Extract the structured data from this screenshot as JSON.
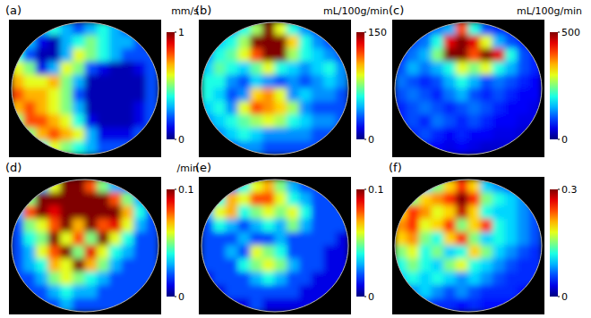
{
  "chart_data": [
    {
      "type": "heatmap",
      "title": "(a)",
      "colorbar_label": "mm/s",
      "colorbar_range": [
        0,
        1
      ],
      "colorbar_ticks": [
        0,
        1
      ],
      "cells": [
        [
          null,
          null,
          0.3,
          0.4,
          0.3,
          0.2,
          0.3,
          0.4,
          0.3,
          0.2,
          null,
          null
        ],
        [
          null,
          0.3,
          0.1,
          0.05,
          0.3,
          0.4,
          0.5,
          0.4,
          0.3,
          0.3,
          0.2,
          null
        ],
        [
          0.4,
          0.2,
          0.05,
          0.05,
          0.3,
          0.6,
          0.5,
          0.4,
          0.3,
          0.2,
          0.2,
          0.2
        ],
        [
          0.6,
          0.5,
          0.1,
          0.3,
          0.6,
          0.5,
          0.2,
          0.1,
          0.05,
          0.05,
          0.1,
          0.2
        ],
        [
          0.7,
          0.6,
          0.6,
          0.7,
          0.5,
          0.3,
          0.05,
          0.05,
          0.05,
          0.05,
          0.05,
          0.2
        ],
        [
          0.8,
          0.7,
          0.7,
          0.6,
          0.5,
          0.2,
          0.05,
          0.05,
          0.05,
          0.05,
          0.05,
          0.2
        ],
        [
          0.7,
          0.8,
          0.7,
          0.6,
          0.5,
          0.3,
          0.05,
          0.05,
          0.05,
          0.05,
          0.1,
          0.2
        ],
        [
          0.5,
          0.8,
          0.8,
          0.7,
          0.6,
          0.4,
          0.1,
          0.05,
          0.05,
          0.05,
          0.1,
          0.2
        ],
        [
          null,
          0.5,
          0.7,
          0.8,
          0.7,
          0.6,
          0.3,
          0.1,
          0.1,
          0.1,
          0.2,
          null
        ],
        [
          null,
          null,
          0.4,
          0.6,
          0.5,
          0.4,
          0.3,
          0.2,
          0.2,
          0.2,
          null,
          null
        ]
      ]
    },
    {
      "type": "heatmap",
      "title": "(b)",
      "colorbar_label": "mL/100g/min",
      "colorbar_range": [
        0,
        150
      ],
      "colorbar_ticks": [
        0,
        150
      ],
      "cells": [
        [
          null,
          null,
          40,
          60,
          80,
          150,
          90,
          60,
          40,
          30,
          null,
          null
        ],
        [
          null,
          50,
          60,
          80,
          150,
          150,
          150,
          100,
          60,
          40,
          30,
          null
        ],
        [
          40,
          60,
          70,
          90,
          120,
          150,
          150,
          80,
          60,
          50,
          40,
          30
        ],
        [
          50,
          70,
          60,
          50,
          70,
          90,
          60,
          50,
          40,
          50,
          60,
          40
        ],
        [
          60,
          60,
          40,
          30,
          50,
          40,
          30,
          40,
          30,
          40,
          50,
          40
        ],
        [
          60,
          50,
          30,
          40,
          100,
          110,
          90,
          40,
          50,
          40,
          40,
          30
        ],
        [
          50,
          60,
          40,
          90,
          120,
          110,
          100,
          80,
          40,
          30,
          30,
          30
        ],
        [
          40,
          50,
          60,
          70,
          80,
          90,
          80,
          60,
          50,
          40,
          40,
          30
        ],
        [
          null,
          40,
          50,
          60,
          50,
          40,
          40,
          40,
          40,
          30,
          30,
          null
        ],
        [
          null,
          null,
          30,
          40,
          40,
          30,
          30,
          30,
          30,
          30,
          null,
          null
        ]
      ]
    },
    {
      "type": "heatmap",
      "title": "(c)",
      "colorbar_label": "mL/100g/min",
      "colorbar_range": [
        0,
        500
      ],
      "colorbar_ticks": [
        0,
        500
      ],
      "cells": [
        [
          null,
          null,
          80,
          120,
          150,
          400,
          200,
          100,
          80,
          60,
          null,
          null
        ],
        [
          null,
          100,
          120,
          200,
          450,
          500,
          450,
          300,
          150,
          100,
          80,
          null
        ],
        [
          80,
          120,
          150,
          250,
          500,
          500,
          400,
          500,
          450,
          200,
          100,
          80
        ],
        [
          100,
          150,
          120,
          150,
          200,
          300,
          250,
          300,
          200,
          150,
          100,
          80
        ],
        [
          120,
          100,
          80,
          100,
          150,
          200,
          150,
          100,
          120,
          100,
          80,
          60
        ],
        [
          100,
          120,
          100,
          80,
          120,
          150,
          100,
          80,
          100,
          80,
          60,
          60
        ],
        [
          80,
          100,
          120,
          100,
          80,
          100,
          120,
          100,
          80,
          60,
          60,
          50
        ],
        [
          80,
          100,
          80,
          120,
          100,
          80,
          100,
          80,
          60,
          60,
          50,
          50
        ],
        [
          null,
          80,
          100,
          80,
          60,
          80,
          60,
          60,
          50,
          50,
          40,
          null
        ],
        [
          null,
          null,
          60,
          60,
          50,
          60,
          50,
          40,
          40,
          40,
          null,
          null
        ]
      ]
    },
    {
      "type": "heatmap",
      "title": "(d)",
      "colorbar_label": "/min",
      "colorbar_range": [
        0,
        0.1
      ],
      "colorbar_ticks": [
        0,
        0.1
      ],
      "cells": [
        [
          null,
          null,
          0.03,
          0.06,
          0.1,
          0.1,
          0.08,
          0.05,
          0.03,
          0.02,
          null,
          null
        ],
        [
          null,
          0.05,
          0.1,
          0.1,
          0.1,
          0.1,
          0.1,
          0.1,
          0.08,
          0.05,
          0.03,
          null
        ],
        [
          0.03,
          0.08,
          0.1,
          0.09,
          0.1,
          0.1,
          0.1,
          0.1,
          0.1,
          0.07,
          0.04,
          0.02
        ],
        [
          0.02,
          0.05,
          0.06,
          0.08,
          0.1,
          0.07,
          0.1,
          0.08,
          0.09,
          0.06,
          0.03,
          0.02
        ],
        [
          0.02,
          0.04,
          0.05,
          0.1,
          0.06,
          0.08,
          0.05,
          0.1,
          0.06,
          0.04,
          0.02,
          0.02
        ],
        [
          0.02,
          0.03,
          0.06,
          0.08,
          0.1,
          0.05,
          0.09,
          0.06,
          0.04,
          0.03,
          0.02,
          0.02
        ],
        [
          0.02,
          0.03,
          0.04,
          0.07,
          0.06,
          0.1,
          0.07,
          0.05,
          0.03,
          0.02,
          0.02,
          0.02
        ],
        [
          0.02,
          0.02,
          0.03,
          0.05,
          0.06,
          0.05,
          0.04,
          0.03,
          0.02,
          0.02,
          0.02,
          0.02
        ],
        [
          null,
          0.02,
          0.02,
          0.03,
          0.04,
          0.03,
          0.03,
          0.02,
          0.02,
          0.02,
          0.02,
          null
        ],
        [
          null,
          null,
          0.02,
          0.02,
          0.03,
          0.02,
          0.02,
          0.02,
          0.02,
          0.02,
          null,
          null
        ]
      ]
    },
    {
      "type": "heatmap",
      "title": "(e)",
      "colorbar_range": [
        0,
        0.1
      ],
      "colorbar_ticks": [
        0,
        0.1
      ],
      "cells": [
        [
          null,
          null,
          0.02,
          0.04,
          0.06,
          0.07,
          0.05,
          0.03,
          0.02,
          0.02,
          null,
          null
        ],
        [
          null,
          0.04,
          0.07,
          0.06,
          0.08,
          0.08,
          0.06,
          0.04,
          0.03,
          0.02,
          0.02,
          null
        ],
        [
          0.03,
          0.06,
          0.07,
          0.04,
          0.05,
          0.06,
          0.05,
          0.06,
          0.04,
          0.02,
          0.02,
          0.02
        ],
        [
          0.02,
          0.04,
          0.03,
          0.02,
          0.03,
          0.04,
          0.03,
          0.05,
          0.03,
          0.02,
          0.02,
          0.02
        ],
        [
          0.02,
          0.02,
          0.02,
          0.03,
          0.02,
          0.02,
          0.03,
          0.02,
          0.02,
          0.02,
          0.02,
          0.01
        ],
        [
          0.02,
          0.02,
          0.03,
          0.02,
          0.06,
          0.05,
          0.04,
          0.02,
          0.02,
          0.02,
          0.01,
          0.01
        ],
        [
          0.02,
          0.02,
          0.02,
          0.04,
          0.05,
          0.06,
          0.05,
          0.03,
          0.02,
          0.02,
          0.01,
          0.01
        ],
        [
          0.01,
          0.02,
          0.02,
          0.02,
          0.03,
          0.04,
          0.03,
          0.02,
          0.02,
          0.01,
          0.01,
          0.01
        ],
        [
          null,
          0.01,
          0.02,
          0.02,
          0.02,
          0.02,
          0.02,
          0.02,
          0.01,
          0.01,
          0.01,
          null
        ],
        [
          null,
          null,
          0.01,
          0.01,
          0.02,
          0.01,
          0.01,
          0.01,
          0.01,
          0.01,
          null,
          null
        ]
      ]
    },
    {
      "type": "heatmap",
      "title": "(f)",
      "colorbar_range": [
        0,
        0.3
      ],
      "colorbar_ticks": [
        0,
        0.3
      ],
      "cells": [
        [
          null,
          null,
          0.1,
          0.15,
          0.2,
          0.25,
          0.2,
          0.1,
          0.08,
          0.06,
          null,
          null
        ],
        [
          null,
          0.15,
          0.2,
          0.22,
          0.25,
          0.3,
          0.25,
          0.15,
          0.12,
          0.1,
          0.08,
          null
        ],
        [
          0.2,
          0.25,
          0.22,
          0.18,
          0.2,
          0.28,
          0.2,
          0.12,
          0.1,
          0.1,
          0.08,
          0.06
        ],
        [
          0.22,
          0.25,
          0.18,
          0.2,
          0.25,
          0.15,
          0.2,
          0.25,
          0.12,
          0.1,
          0.08,
          0.06
        ],
        [
          0.2,
          0.22,
          0.15,
          0.12,
          0.2,
          0.25,
          0.15,
          0.1,
          0.12,
          0.1,
          0.08,
          0.06
        ],
        [
          0.15,
          0.18,
          0.12,
          0.15,
          0.1,
          0.12,
          0.2,
          0.15,
          0.1,
          0.08,
          0.06,
          0.05
        ],
        [
          0.12,
          0.15,
          0.12,
          0.1,
          0.15,
          0.18,
          0.12,
          0.1,
          0.08,
          0.06,
          0.05,
          0.05
        ],
        [
          0.1,
          0.12,
          0.1,
          0.12,
          0.1,
          0.08,
          0.1,
          0.08,
          0.06,
          0.05,
          0.05,
          0.05
        ],
        [
          null,
          0.08,
          0.1,
          0.08,
          0.06,
          0.08,
          0.06,
          0.05,
          0.05,
          0.05,
          0.04,
          null
        ],
        [
          null,
          null,
          0.06,
          0.05,
          0.05,
          0.04,
          0.05,
          0.04,
          0.04,
          0.04,
          null,
          null
        ]
      ]
    }
  ]
}
